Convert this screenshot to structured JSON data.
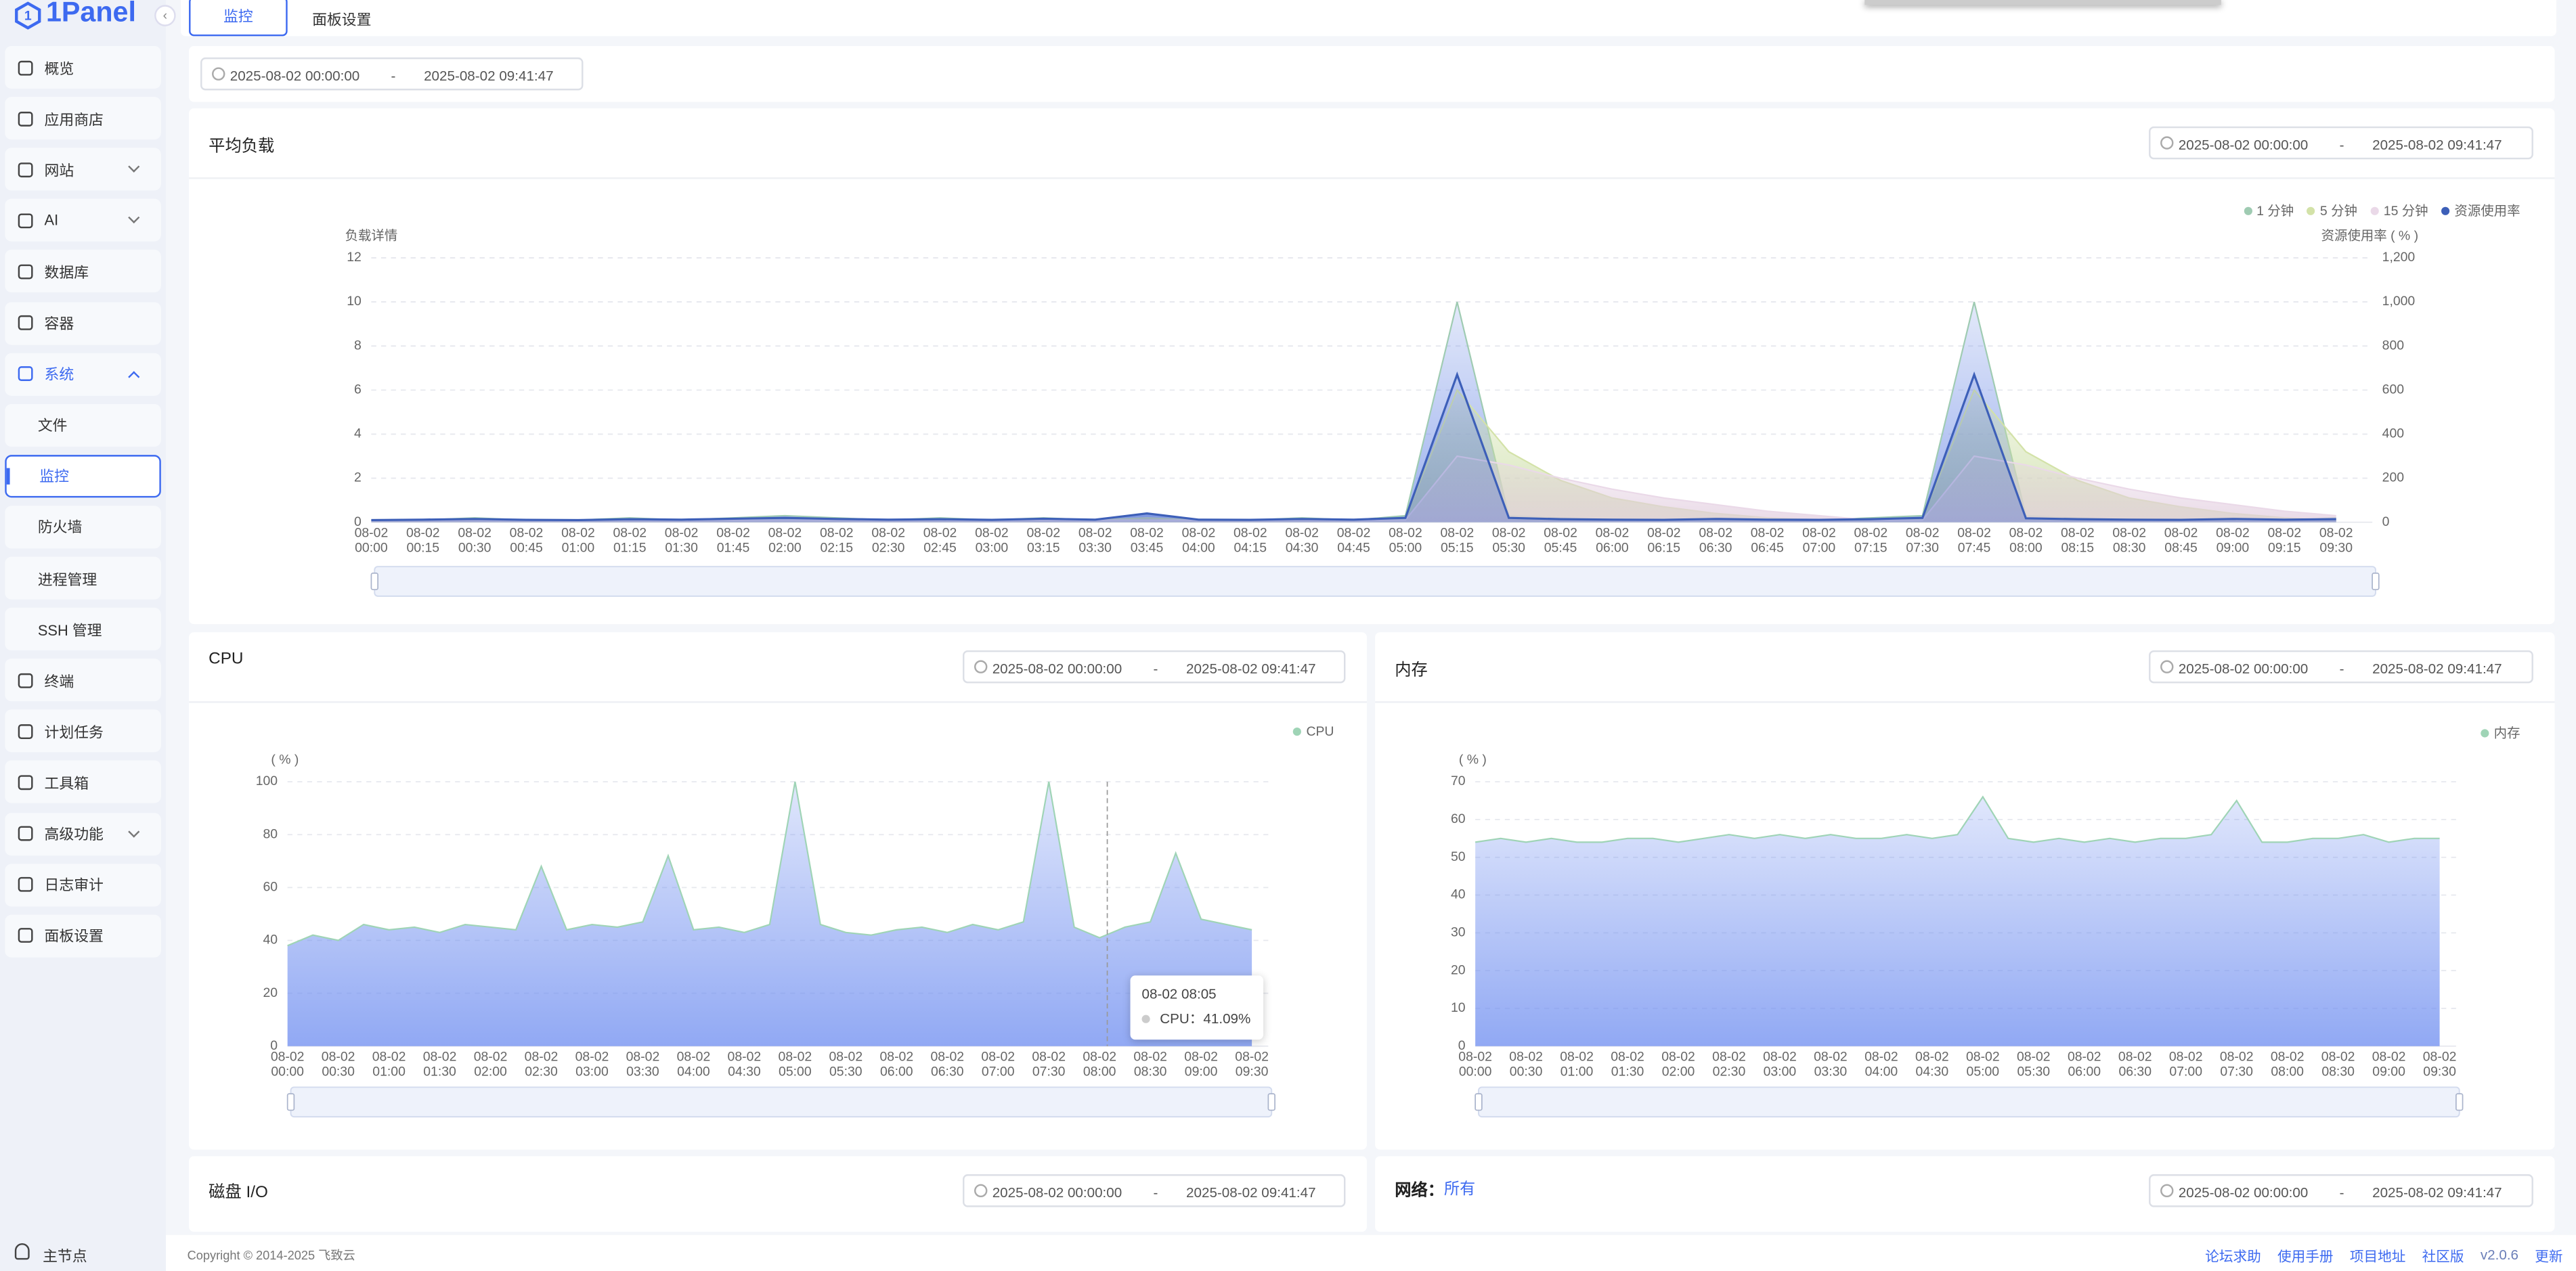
{
  "sidebar": {
    "logo": "1Panel",
    "menu": [
      {
        "label": "概览"
      },
      {
        "label": "应用商店"
      },
      {
        "label": "网站"
      },
      {
        "label": "AI"
      },
      {
        "label": "数据库"
      },
      {
        "label": "容器"
      },
      {
        "label": "系统",
        "children": [
          "文件",
          "监控",
          "防火墙",
          "进程管理",
          "SSH 管理"
        ]
      },
      {
        "label": "终端"
      },
      {
        "label": "计划任务"
      },
      {
        "label": "工具箱"
      },
      {
        "label": "高级功能"
      },
      {
        "label": "日志审计"
      },
      {
        "label": "面板设置"
      }
    ],
    "node": "主节点"
  },
  "tabs": [
    "监控",
    "面板设置"
  ],
  "date_separator": "-",
  "range": {
    "start": "2025-08-02 00:00:00",
    "end": "2025-08-02 09:41:47"
  },
  "load": {
    "title": "平均负载",
    "range": {
      "start": "2025-08-02 00:00:00",
      "end": "2025-08-02 09:41:47"
    },
    "chart": {
      "type": "area",
      "ylabel": "负载详情",
      "y2label": "资源使用率 ( % )",
      "grid": true,
      "legend": "top-right",
      "categories": [
        "08-02 00:00",
        "08-02 00:15",
        "08-02 00:30",
        "08-02 00:45",
        "08-02 01:00",
        "08-02 01:15",
        "08-02 01:30",
        "08-02 01:45",
        "08-02 02:00",
        "08-02 02:15",
        "08-02 02:30",
        "08-02 02:45",
        "08-02 03:00",
        "08-02 03:15",
        "08-02 03:30",
        "08-02 03:45",
        "08-02 04:00",
        "08-02 04:15",
        "08-02 04:30",
        "08-02 04:45",
        "08-02 05:00",
        "08-02 05:15",
        "08-02 05:30",
        "08-02 05:45",
        "08-02 06:00",
        "08-02 06:15",
        "08-02 06:30",
        "08-02 06:45",
        "08-02 07:00",
        "08-02 07:15",
        "08-02 07:30",
        "08-02 07:45",
        "08-02 08:00",
        "08-02 08:15",
        "08-02 08:30",
        "08-02 08:45",
        "08-02 09:00",
        "08-02 09:15",
        "08-02 09:30"
      ],
      "series": [
        {
          "name": "1 分钟",
          "color": "#9fcbb2",
          "fill": "#7d98e8",
          "values": [
            0.1,
            0.1,
            0.2,
            0.1,
            0.1,
            0.2,
            0.1,
            0.2,
            0.3,
            0.2,
            0.1,
            0.2,
            0.1,
            0.2,
            0.1,
            0.4,
            0.1,
            0.1,
            0.2,
            0.1,
            0.3,
            10,
            0.3,
            0.2,
            0.1,
            0.1,
            0.2,
            0.1,
            0.1,
            0.2,
            0.3,
            10,
            0.3,
            0.2,
            0.1,
            0.1,
            0.2,
            0.1,
            0.2
          ]
        },
        {
          "name": "5 分钟",
          "color": "#d3e2a8",
          "fill": "#c9dca0",
          "values": [
            0.1,
            0.1,
            0.1,
            0.1,
            0.1,
            0.1,
            0.1,
            0.1,
            0.1,
            0.1,
            0.1,
            0.1,
            0.1,
            0.1,
            0.1,
            0.2,
            0.1,
            0.1,
            0.1,
            0.1,
            0.2,
            6,
            3.2,
            1.9,
            1.1,
            0.7,
            0.4,
            0.2,
            0.1,
            0.1,
            0.2,
            6,
            3.2,
            1.9,
            1.1,
            0.7,
            0.4,
            0.2,
            0.1
          ]
        },
        {
          "name": "15 分钟",
          "color": "#ead9e8",
          "fill": "#e3cfe0",
          "values": [
            0.1,
            0.1,
            0.1,
            0.1,
            0.1,
            0.1,
            0.1,
            0.1,
            0.1,
            0.1,
            0.1,
            0.1,
            0.1,
            0.1,
            0.1,
            0.1,
            0.1,
            0.1,
            0.1,
            0.1,
            0.1,
            3,
            2.6,
            2,
            1.5,
            1.1,
            0.8,
            0.5,
            0.3,
            0.1,
            0.1,
            3,
            2.6,
            2,
            1.5,
            1.1,
            0.8,
            0.5,
            0.3
          ]
        },
        {
          "name": "资源使用率",
          "color": "#3d5fb8",
          "fill": "#5b78d0",
          "axis": "y2",
          "values": [
            10,
            12,
            15,
            11,
            10,
            14,
            12,
            16,
            20,
            15,
            12,
            14,
            11,
            16,
            12,
            40,
            12,
            11,
            15,
            12,
            20,
            670,
            20,
            14,
            12,
            11,
            15,
            12,
            11,
            14,
            20,
            670,
            18,
            14,
            12,
            11,
            15,
            12,
            14
          ]
        }
      ],
      "ylim": [
        0,
        12
      ],
      "yticks": [
        0,
        2,
        4,
        6,
        8,
        10,
        12
      ],
      "y2lim": [
        0,
        1200
      ],
      "y2ticks": [
        0,
        200,
        400,
        600,
        800,
        {
          "value": 1000,
          "label": "1,000"
        },
        {
          "value": 1200,
          "label": "1,200"
        }
      ]
    }
  },
  "cpu": {
    "title": "CPU",
    "range": {
      "start": "2025-08-02 00:00:00",
      "end": "2025-08-02 09:41:47"
    },
    "chart": {
      "type": "area",
      "ylabel": "( % )",
      "grid": true,
      "legend": "top-right",
      "categories": [
        "08-02 00:00",
        null,
        "08-02 00:30",
        null,
        "08-02 01:00",
        null,
        "08-02 01:30",
        null,
        "08-02 02:00",
        null,
        "08-02 02:30",
        null,
        "08-02 03:00",
        null,
        "08-02 03:30",
        null,
        "08-02 04:00",
        null,
        "08-02 04:30",
        null,
        "08-02 05:00",
        null,
        "08-02 05:30",
        null,
        "08-02 06:00",
        null,
        "08-02 06:30",
        null,
        "08-02 07:00",
        null,
        "08-02 07:30",
        null,
        "08-02 08:00",
        null,
        "08-02 08:30",
        null,
        "08-02 09:00",
        null,
        "08-02 09:30"
      ],
      "series": [
        {
          "name": "CPU",
          "color": "#9fd4b6",
          "fill": "#6f8ef0",
          "values": [
            38,
            42,
            40,
            46,
            44,
            45,
            43,
            46,
            45,
            44,
            68,
            44,
            46,
            45,
            47,
            72,
            44,
            45,
            43,
            46,
            100,
            46,
            43,
            42,
            44,
            45,
            43,
            46,
            44,
            47,
            100,
            45,
            41,
            45,
            47,
            73,
            48,
            46,
            44
          ]
        }
      ],
      "ylim": [
        0,
        100
      ],
      "yticks": [
        0,
        20,
        40,
        60,
        80,
        100
      ],
      "tooltip": {
        "title": "08-02 08:05",
        "text": "CPU：41.09%"
      }
    }
  },
  "memory": {
    "title": "内存",
    "range": {
      "start": "2025-08-02 00:00:00",
      "end": "2025-08-02 09:41:47"
    },
    "chart": {
      "type": "area",
      "ylabel": "( % )",
      "grid": true,
      "legend": "top-right",
      "categories": [
        "08-02 00:00",
        null,
        "08-02 00:30",
        null,
        "08-02 01:00",
        null,
        "08-02 01:30",
        null,
        "08-02 02:00",
        null,
        "08-02 02:30",
        null,
        "08-02 03:00",
        null,
        "08-02 03:30",
        null,
        "08-02 04:00",
        null,
        "08-02 04:30",
        null,
        "08-02 05:00",
        null,
        "08-02 05:30",
        null,
        "08-02 06:00",
        null,
        "08-02 06:30",
        null,
        "08-02 07:00",
        null,
        "08-02 07:30",
        null,
        "08-02 08:00",
        null,
        "08-02 08:30",
        null,
        "08-02 09:00",
        null,
        "08-02 09:30"
      ],
      "series": [
        {
          "name": "内存",
          "color": "#9fd4b6",
          "fill": "#6f8ef0",
          "values": [
            54,
            55,
            54,
            55,
            54,
            54,
            55,
            55,
            54,
            55,
            56,
            55,
            56,
            55,
            56,
            55,
            55,
            56,
            55,
            56,
            66,
            55,
            54,
            55,
            54,
            55,
            54,
            55,
            55,
            56,
            65,
            54,
            54,
            55,
            55,
            56,
            54,
            55,
            55
          ]
        }
      ],
      "ylim": [
        0,
        70
      ],
      "yticks": [
        0,
        10,
        20,
        30,
        40,
        50,
        60,
        70
      ]
    }
  },
  "disk": {
    "title": "磁盘 I/O",
    "range": {
      "start": "2025-08-02 00:00:00",
      "end": "2025-08-02 09:41:47"
    }
  },
  "network": {
    "title": "网络：",
    "filter": "所有",
    "range": {
      "start": "2025-08-02 00:00:00",
      "end": "2025-08-02 09:41:47"
    }
  },
  "footer": {
    "copyright": "Copyright © 2014-2025 飞致云",
    "links": [
      "论坛求助",
      "使用手册",
      "项目地址",
      "社区版"
    ],
    "version": "v2.0.6",
    "update": "更新"
  }
}
